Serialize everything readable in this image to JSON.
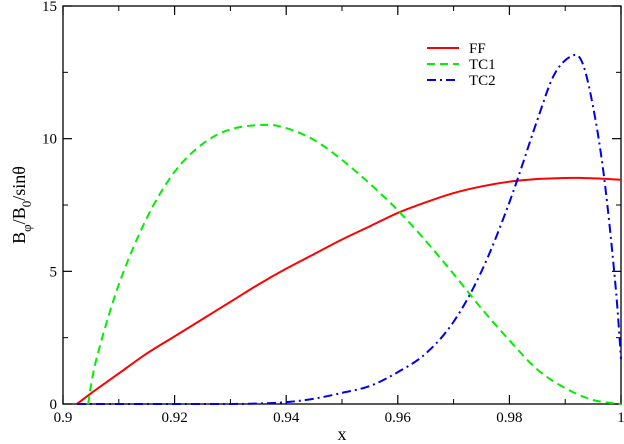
{
  "chart_data": {
    "type": "line",
    "xlabel": "x",
    "ylabel": {
      "base": "B",
      "sub1": "φ",
      "mid": "/B",
      "sub2": "0",
      "tail": "/sinθ"
    },
    "xlim": [
      0.9,
      1.0
    ],
    "ylim": [
      0,
      15
    ],
    "x_ticks": [
      0.9,
      0.92,
      0.94,
      0.96,
      0.98,
      1.0
    ],
    "x_tick_labels": [
      "0.9",
      "0.92",
      "0.94",
      "0.96",
      "0.98",
      "1"
    ],
    "y_ticks": [
      0,
      5,
      10,
      15
    ],
    "y_tick_labels": [
      "0",
      "5",
      "10",
      "15"
    ],
    "grid": false,
    "legend_position": "top-right",
    "series": [
      {
        "name": "FF",
        "color": "#ff0000",
        "dash": "solid",
        "x": [
          0.9025,
          0.905,
          0.91,
          0.915,
          0.92,
          0.925,
          0.93,
          0.935,
          0.94,
          0.945,
          0.95,
          0.955,
          0.96,
          0.965,
          0.97,
          0.975,
          0.98,
          0.985,
          0.99,
          0.993,
          0.996,
          1.0
        ],
        "y": [
          0,
          0.4,
          1.15,
          1.9,
          2.55,
          3.2,
          3.85,
          4.5,
          5.1,
          5.65,
          6.2,
          6.7,
          7.2,
          7.6,
          7.95,
          8.2,
          8.38,
          8.48,
          8.52,
          8.52,
          8.5,
          8.45
        ]
      },
      {
        "name": "TC1",
        "color": "#00ee00",
        "dash": "dashed",
        "x": [
          0.9045,
          0.906,
          0.91,
          0.915,
          0.92,
          0.925,
          0.93,
          0.936,
          0.94,
          0.945,
          0.95,
          0.955,
          0.96,
          0.965,
          0.97,
          0.975,
          0.98,
          0.985,
          0.99,
          0.995,
          1.0
        ],
        "y": [
          0,
          1.7,
          4.5,
          7.0,
          8.75,
          9.8,
          10.35,
          10.52,
          10.4,
          9.95,
          9.2,
          8.3,
          7.3,
          6.15,
          4.9,
          3.6,
          2.4,
          1.3,
          0.6,
          0.15,
          0
        ]
      },
      {
        "name": "TC2",
        "color": "#0000ee",
        "dash": "dashdot",
        "x": [
          0.9025,
          0.91,
          0.92,
          0.93,
          0.935,
          0.94,
          0.945,
          0.95,
          0.955,
          0.96,
          0.965,
          0.97,
          0.975,
          0.98,
          0.985,
          0.988,
          0.991,
          0.993,
          0.995,
          0.997,
          0.999,
          1.0
        ],
        "y": [
          0,
          0,
          0,
          0,
          0.02,
          0.07,
          0.2,
          0.42,
          0.68,
          1.2,
          1.9,
          3.1,
          5.0,
          7.6,
          10.7,
          12.4,
          13.1,
          12.9,
          11.2,
          8.5,
          4.5,
          1.7
        ]
      }
    ]
  }
}
